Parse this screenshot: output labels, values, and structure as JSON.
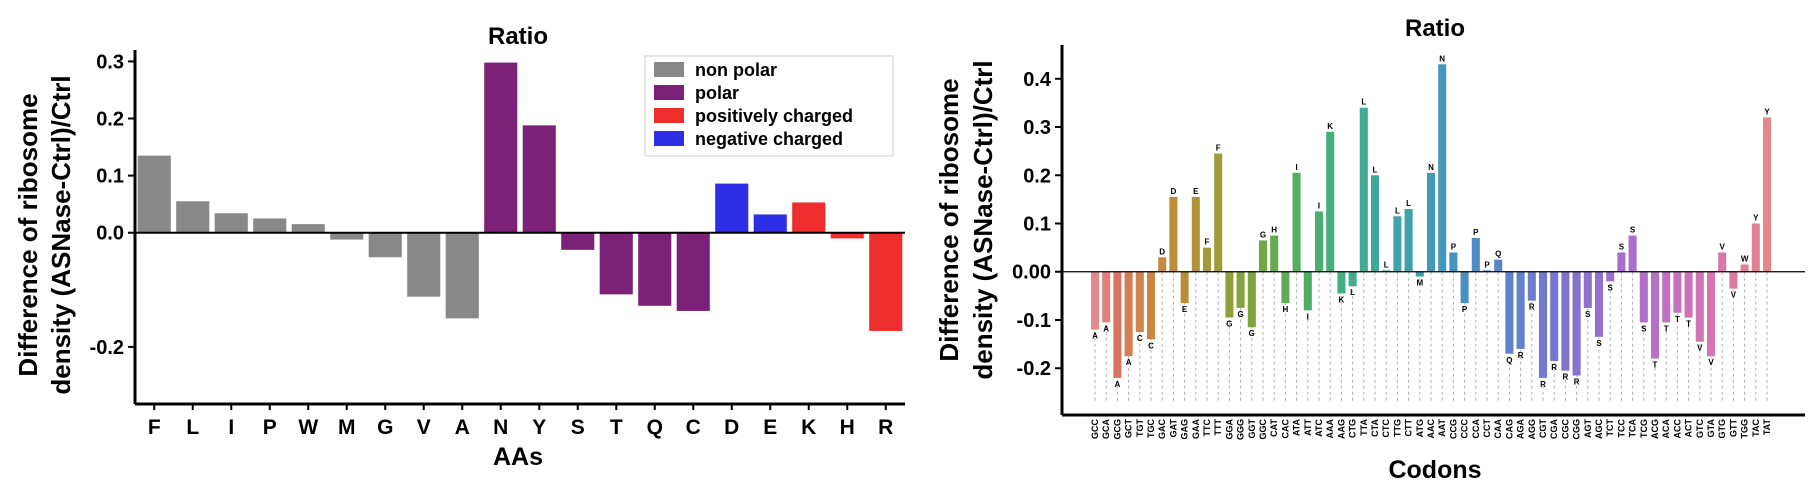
{
  "colors": {
    "non_polar": "#888888",
    "polar": "#7b2178",
    "positively_charged": "#ee2d2d",
    "negative_charged": "#2e2ee6",
    "axis": "#000000"
  },
  "chart_data": [
    {
      "type": "bar",
      "title": "Ratio",
      "xlabel": "AAs",
      "ylabel_lines": [
        "Difference of ribosome",
        "density (ASNase-Ctrl)/Ctrl"
      ],
      "ylim": [
        -0.3,
        0.32
      ],
      "yticks": [
        -0.2,
        0.0,
        0.1,
        0.2,
        0.3
      ],
      "ytick_labels": [
        "-0.2",
        "0.0",
        "0.1",
        "0.2",
        "0.3"
      ],
      "legend_position": "top-right",
      "legend": [
        {
          "label": "non polar",
          "group": "non_polar"
        },
        {
          "label": "polar",
          "group": "polar"
        },
        {
          "label": "positively charged",
          "group": "positively_charged"
        },
        {
          "label": "negative charged",
          "group": "negative_charged"
        }
      ],
      "categories": [
        "F",
        "L",
        "I",
        "P",
        "W",
        "M",
        "G",
        "V",
        "A",
        "N",
        "Y",
        "S",
        "T",
        "Q",
        "C",
        "D",
        "E",
        "K",
        "H",
        "R"
      ],
      "values": [
        0.135,
        0.055,
        0.034,
        0.025,
        0.015,
        -0.012,
        -0.043,
        -0.112,
        -0.15,
        0.298,
        0.188,
        -0.03,
        -0.108,
        -0.128,
        -0.137,
        0.086,
        0.032,
        0.053,
        -0.01,
        -0.172
      ],
      "groups": [
        "non_polar",
        "non_polar",
        "non_polar",
        "non_polar",
        "non_polar",
        "non_polar",
        "non_polar",
        "non_polar",
        "non_polar",
        "polar",
        "polar",
        "polar",
        "polar",
        "polar",
        "polar",
        "negative_charged",
        "negative_charged",
        "positively_charged",
        "positively_charged",
        "positively_charged"
      ]
    },
    {
      "type": "bar",
      "title": "Ratio",
      "xlabel": "Codons",
      "ylabel_lines": [
        "Difference of ribosome",
        "density (ASNase-Ctrl)/Ctrl"
      ],
      "ylim": [
        -0.27,
        0.47
      ],
      "yticks": [
        -0.2,
        -0.1,
        0.0,
        0.1,
        0.2,
        0.3,
        0.4
      ],
      "ytick_labels": [
        "-0.2",
        "-0.1",
        "0.00",
        "0.1",
        "0.2",
        "0.3",
        "0.4"
      ],
      "categories": [
        "GCC",
        "GCA",
        "GCG",
        "GCT",
        "TGT",
        "TGC",
        "GAC",
        "GAT",
        "GAG",
        "GAA",
        "TTC",
        "TTT",
        "GGA",
        "GGG",
        "GGT",
        "GGC",
        "CAT",
        "CAC",
        "ATA",
        "ATT",
        "ATC",
        "AAA",
        "AAG",
        "CTG",
        "TTA",
        "CTA",
        "CTC",
        "TTG",
        "CTT",
        "ATG",
        "AAC",
        "AAT",
        "CCG",
        "CCC",
        "CCA",
        "CCT",
        "CAA",
        "CAG",
        "AGA",
        "AGG",
        "CGT",
        "CGA",
        "CGC",
        "CGG",
        "AGT",
        "AGC",
        "TCT",
        "TCC",
        "TCA",
        "TCG",
        "ACG",
        "ACA",
        "ACC",
        "ACT",
        "GTC",
        "GTA",
        "GTG",
        "GTT",
        "TGG",
        "TAC",
        "TAT"
      ],
      "amino_acids": [
        "A",
        "A",
        "A",
        "A",
        "C",
        "C",
        "D",
        "D",
        "E",
        "E",
        "F",
        "F",
        "G",
        "G",
        "G",
        "G",
        "H",
        "H",
        "I",
        "I",
        "I",
        "K",
        "K",
        "L",
        "L",
        "L",
        "L",
        "L",
        "L",
        "M",
        "N",
        "N",
        "P",
        "P",
        "P",
        "P",
        "Q",
        "Q",
        "R",
        "R",
        "R",
        "R",
        "R",
        "R",
        "S",
        "S",
        "S",
        "S",
        "S",
        "S",
        "T",
        "T",
        "T",
        "T",
        "V",
        "V",
        "V",
        "V",
        "W",
        "Y",
        "Y"
      ],
      "values": [
        -0.12,
        -0.105,
        -0.22,
        -0.175,
        -0.125,
        -0.14,
        0.03,
        0.155,
        -0.065,
        0.155,
        0.05,
        0.245,
        -0.095,
        -0.075,
        -0.115,
        0.065,
        0.075,
        -0.065,
        0.205,
        -0.08,
        0.125,
        0.29,
        -0.045,
        -0.03,
        0.34,
        0.2,
        0.003,
        0.115,
        0.13,
        -0.01,
        0.205,
        0.43,
        0.04,
        -0.065,
        0.07,
        0.003,
        0.025,
        -0.17,
        -0.16,
        -0.06,
        -0.22,
        -0.185,
        -0.205,
        -0.215,
        -0.075,
        -0.135,
        -0.02,
        0.04,
        0.075,
        -0.105,
        -0.18,
        -0.105,
        -0.085,
        -0.095,
        -0.145,
        -0.175,
        0.04,
        -0.035,
        0.015,
        0.1,
        0.32
      ],
      "colors": [
        "#e4888c",
        "#e0807a",
        "#db7460",
        "#d47c52",
        "#d1844a",
        "#c98743",
        "#c48b3f",
        "#bf8d3a",
        "#b78f3a",
        "#b0923a",
        "#a6983a",
        "#9d9c3a",
        "#93a03a",
        "#87a33b",
        "#7ba53f",
        "#70a845",
        "#67aa4c",
        "#5dab55",
        "#55ad5d",
        "#4fae66",
        "#49ae70",
        "#45af7a",
        "#42ae83",
        "#40ad8c",
        "#3fab93",
        "#3ea99a",
        "#3ea6a1",
        "#3ea4a7",
        "#3ea1ac",
        "#3f9eb1",
        "#419ab6",
        "#4397ba",
        "#4693bd",
        "#4990c1",
        "#4d8cc4",
        "#5189c6",
        "#5786c9",
        "#5d82cb",
        "#6480cc",
        "#6a7dce",
        "#717ace",
        "#7877cf",
        "#7f75cf",
        "#8673cf",
        "#8d72cf",
        "#9471cf",
        "#9c70ce",
        "#a36fcd",
        "#ab6fcb",
        "#b26fc9",
        "#b86fc6",
        "#bf70c2",
        "#c571be",
        "#cb72b9",
        "#d074b4",
        "#d576ae",
        "#d978a7",
        "#dd7ba0",
        "#e07f98",
        "#e38290",
        "#e58689"
      ]
    }
  ]
}
